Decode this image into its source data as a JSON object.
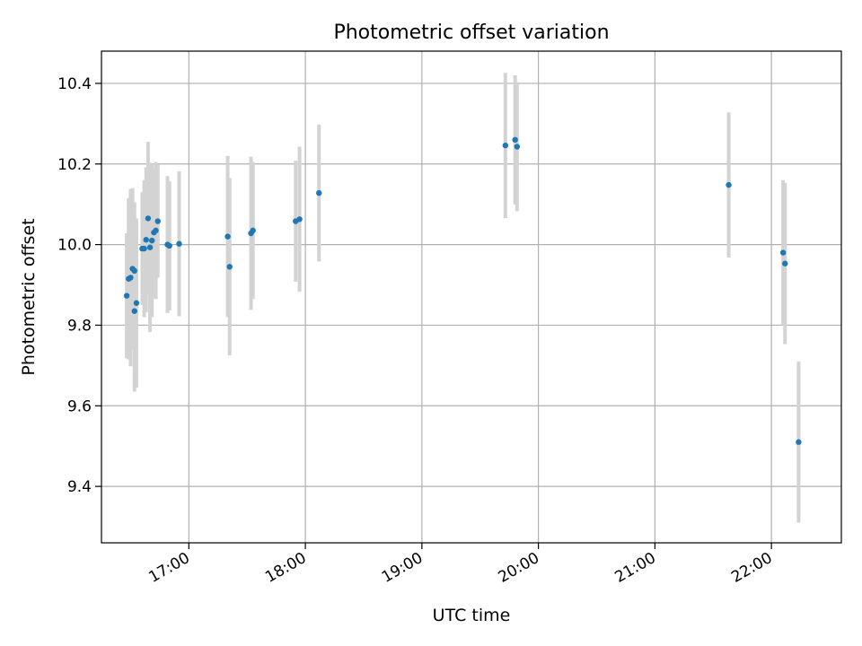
{
  "chart_data": {
    "type": "scatter",
    "title": "Photometric offset variation",
    "xlabel": "UTC time",
    "ylabel": "Photometric offset",
    "x_axis": {
      "kind": "time",
      "range": [
        "16:15",
        "22:36"
      ],
      "ticks": [
        "17:00",
        "18:00",
        "19:00",
        "20:00",
        "21:00",
        "22:00"
      ]
    },
    "y_axis": {
      "range": [
        9.26,
        10.48
      ],
      "ticks": [
        9.4,
        9.6,
        9.8,
        10.0,
        10.2,
        10.4
      ],
      "tick_labels": [
        "9.4",
        "9.6",
        "9.8",
        "10.0",
        "10.2",
        "10.4"
      ]
    },
    "grid": true,
    "colors": {
      "points": "#1f77b4",
      "error_bars": "#d3d3d3",
      "grid": "#b0b0b0"
    },
    "points": [
      {
        "x": "16:28",
        "y": 9.873,
        "yerr": 0.155
      },
      {
        "x": "16:29",
        "y": 9.915,
        "yerr": 0.2
      },
      {
        "x": "16:30",
        "y": 9.918,
        "yerr": 0.22
      },
      {
        "x": "16:31",
        "y": 9.94,
        "yerr": 0.2
      },
      {
        "x": "16:32",
        "y": 9.935,
        "yerr": 0.17
      },
      {
        "x": "16:32",
        "y": 9.835,
        "yerr": 0.2
      },
      {
        "x": "16:33",
        "y": 9.855,
        "yerr": 0.21
      },
      {
        "x": "16:36",
        "y": 9.99,
        "yerr": 0.14
      },
      {
        "x": "16:37",
        "y": 9.99,
        "yerr": 0.17
      },
      {
        "x": "16:38",
        "y": 10.012,
        "yerr": 0.18
      },
      {
        "x": "16:39",
        "y": 10.065,
        "yerr": 0.19
      },
      {
        "x": "16:40",
        "y": 9.993,
        "yerr": 0.21
      },
      {
        "x": "16:41",
        "y": 10.01,
        "yerr": 0.19
      },
      {
        "x": "16:42",
        "y": 10.03,
        "yerr": 0.16
      },
      {
        "x": "16:43",
        "y": 10.035,
        "yerr": 0.17
      },
      {
        "x": "16:44",
        "y": 10.058,
        "yerr": 0.14
      },
      {
        "x": "16:49",
        "y": 10.0,
        "yerr": 0.17
      },
      {
        "x": "16:50",
        "y": 9.997,
        "yerr": 0.16
      },
      {
        "x": "16:55",
        "y": 10.002,
        "yerr": 0.18
      },
      {
        "x": "17:20",
        "y": 10.02,
        "yerr": 0.2
      },
      {
        "x": "17:21",
        "y": 9.945,
        "yerr": 0.22
      },
      {
        "x": "17:32",
        "y": 10.028,
        "yerr": 0.19
      },
      {
        "x": "17:33",
        "y": 10.035,
        "yerr": 0.17
      },
      {
        "x": "17:55",
        "y": 10.058,
        "yerr": 0.15
      },
      {
        "x": "17:57",
        "y": 10.063,
        "yerr": 0.18
      },
      {
        "x": "18:07",
        "y": 10.128,
        "yerr": 0.17
      },
      {
        "x": "19:43",
        "y": 10.246,
        "yerr": 0.18
      },
      {
        "x": "19:48",
        "y": 10.26,
        "yerr": 0.16
      },
      {
        "x": "19:49",
        "y": 10.243,
        "yerr": 0.16
      },
      {
        "x": "21:38",
        "y": 10.148,
        "yerr": 0.18
      },
      {
        "x": "22:06",
        "y": 9.98,
        "yerr": 0.18
      },
      {
        "x": "22:07",
        "y": 9.953,
        "yerr": 0.2
      },
      {
        "x": "22:14",
        "y": 9.51,
        "yerr": 0.2
      }
    ]
  }
}
